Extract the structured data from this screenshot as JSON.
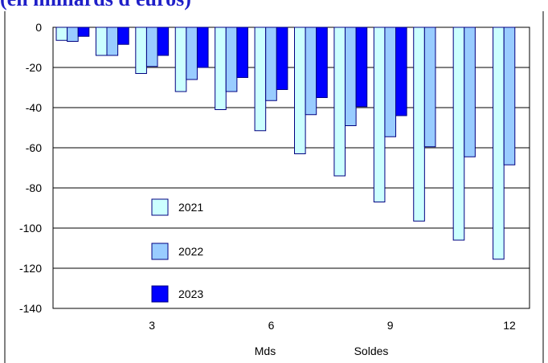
{
  "chart_data": {
    "type": "bar",
    "title": "(en milliards d'euros)",
    "xlabel": "Mds",
    "xlabel2": "Soldes",
    "ylabel": "",
    "ylim": [
      -140,
      0
    ],
    "yticks": [
      0,
      -20,
      -40,
      -60,
      -80,
      -100,
      -120,
      -140
    ],
    "categories": [
      1,
      2,
      3,
      4,
      5,
      6,
      7,
      8,
      9,
      10,
      11,
      12
    ],
    "xtick_labels": {
      "3": "3",
      "6": "6",
      "9": "9",
      "12": "12"
    },
    "grid": true,
    "legend_position": "bottom-left",
    "series": [
      {
        "name": "2021",
        "color": "#ccffff",
        "values": [
          -6.5,
          -14,
          -23,
          -32,
          -41,
          -51.5,
          -63,
          -74,
          -87,
          -96.5,
          -106,
          -115.5
        ]
      },
      {
        "name": "2022",
        "color": "#99ccff",
        "values": [
          -7,
          -14,
          -19.5,
          -26,
          -32,
          -36.5,
          -43.5,
          -49,
          -54.5,
          -59.5,
          -64.5,
          -68.5
        ]
      },
      {
        "name": "2023",
        "color": "#0000ff",
        "values": [
          -4.5,
          -8.5,
          -14,
          -20,
          -25,
          -31,
          -35,
          -39.5,
          -44,
          null,
          null,
          null
        ]
      }
    ]
  }
}
